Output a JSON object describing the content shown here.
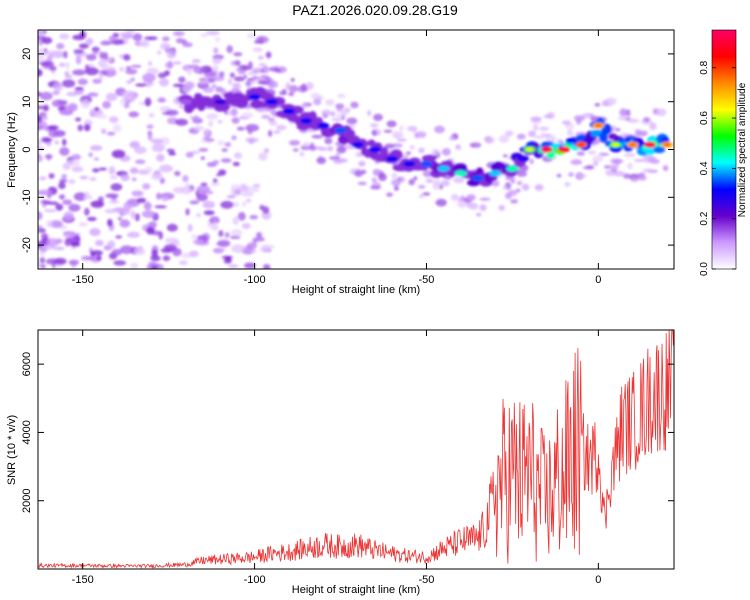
{
  "figure_title": "PAZ1.2026.020.09.28.G19",
  "chart_data": [
    {
      "type": "heatmap",
      "panel": "spectrogram",
      "xlabel": "Height of straight line (km)",
      "ylabel": "Frequency (Hz)",
      "xlim": [
        -163,
        22
      ],
      "ylim": [
        -25,
        25
      ],
      "xticks": [
        -150,
        -100,
        -50,
        0
      ],
      "yticks": [
        -20,
        -10,
        0,
        10,
        20
      ],
      "colorbar": {
        "label": "Normalized spectral amplitude",
        "range": [
          0,
          0.95
        ],
        "ticks": [
          0.0,
          0.2,
          0.4,
          0.6,
          0.8
        ],
        "tick_labels": [
          "0.0",
          "0.2",
          "0.4",
          "0.6",
          "0.8"
        ],
        "colormap": [
          "#ffffff",
          "#cc99ff",
          "#6600cc",
          "#0000ff",
          "#00ffff",
          "#00ff00",
          "#ffff00",
          "#ff8800",
          "#ff0000",
          "#ff0066"
        ]
      },
      "ridge": {
        "x": [
          -120,
          -110,
          -100,
          -95,
          -90,
          -85,
          -80,
          -75,
          -70,
          -65,
          -60,
          -55,
          -50,
          -45,
          -40,
          -35,
          -30,
          -25,
          -20,
          -15,
          -10,
          -5,
          0,
          5,
          10,
          15,
          20
        ],
        "freq": [
          10,
          10,
          11,
          10,
          8,
          6,
          5,
          4,
          1,
          0,
          -2,
          -3,
          -3,
          -4,
          -5,
          -6,
          -5,
          -4,
          0,
          0,
          0,
          1,
          5,
          1,
          1,
          1,
          1
        ],
        "amplitude": [
          0.15,
          0.25,
          0.3,
          0.3,
          0.3,
          0.3,
          0.3,
          0.35,
          0.3,
          0.3,
          0.3,
          0.3,
          0.35,
          0.4,
          0.45,
          0.35,
          0.4,
          0.45,
          0.55,
          0.85,
          0.85,
          0.75,
          0.7,
          0.55,
          0.7,
          0.85,
          0.7
        ]
      },
      "noise_x_range": [
        -163,
        -110
      ]
    },
    {
      "type": "line",
      "panel": "snr",
      "xlabel": "Height of straight line (km)",
      "ylabel": "SNR (10 * v/v)",
      "xlim": [
        -163,
        22
      ],
      "ylim": [
        0,
        7000
      ],
      "xticks": [
        -150,
        -100,
        -50,
        0
      ],
      "yticks": [
        2000,
        4000,
        6000
      ],
      "color": "#ee3333",
      "series": [
        {
          "name": "SNR",
          "x": [
            -163,
            -150,
            -140,
            -130,
            -120,
            -115,
            -110,
            -100,
            -95,
            -90,
            -80,
            -75,
            -70,
            -65,
            -60,
            -55,
            -50,
            -45,
            -40,
            -35,
            -33,
            -30,
            -28,
            -25,
            -22,
            -20,
            -18,
            -15,
            -12,
            -10,
            -8,
            -5,
            -3,
            -1,
            0,
            2,
            3,
            5,
            7,
            10,
            13,
            15,
            18,
            20,
            22
          ],
          "y": [
            100,
            100,
            90,
            90,
            130,
            250,
            280,
            350,
            450,
            500,
            700,
            650,
            700,
            550,
            450,
            380,
            350,
            600,
            800,
            900,
            1200,
            2200,
            2600,
            2800,
            2600,
            2900,
            2300,
            2000,
            2600,
            2700,
            3300,
            3500,
            3200,
            3300,
            3500,
            1300,
            2500,
            3300,
            4200,
            4300,
            4700,
            5000,
            5200,
            5300,
            5500
          ]
        }
      ]
    }
  ]
}
